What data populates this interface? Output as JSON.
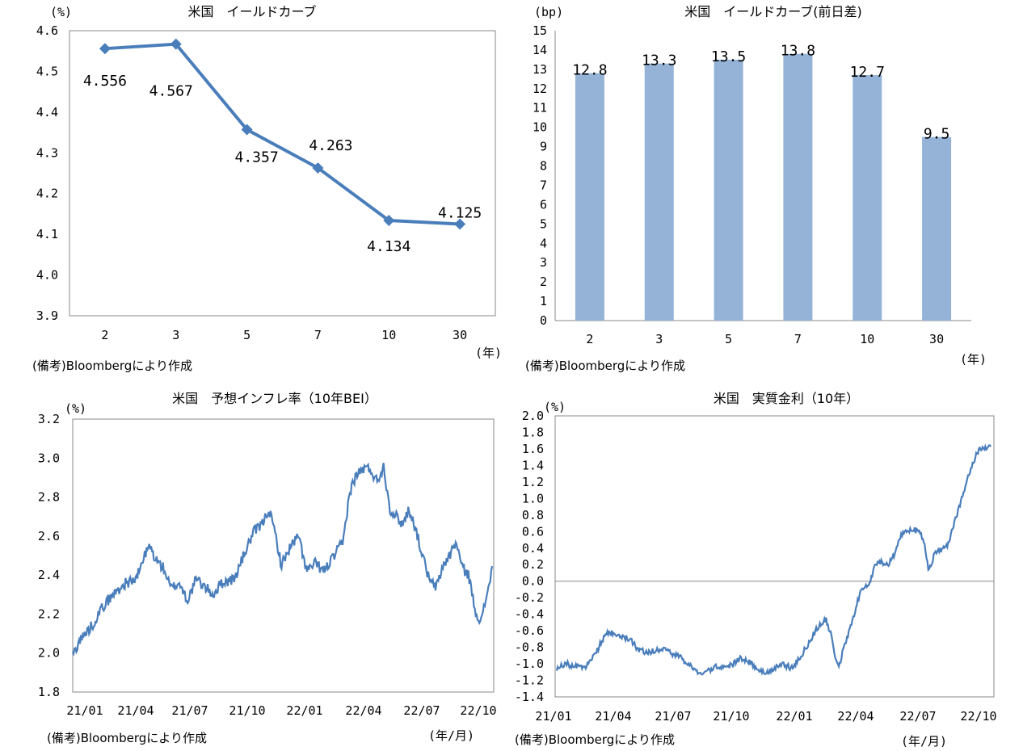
{
  "chart_data": [
    {
      "type": "line",
      "title": "米国　イールドカーブ",
      "y_unit": "(%)",
      "x_unit": "(年)",
      "source": "(備考)Bloombergにより作成",
      "categories": [
        "2",
        "3",
        "5",
        "7",
        "10",
        "30"
      ],
      "values": [
        4.556,
        4.567,
        4.357,
        4.263,
        4.134,
        4.125
      ],
      "data_labels": [
        "4.556",
        "4.567",
        "4.357",
        "4.263",
        "4.134",
        "4.125"
      ],
      "ylim": [
        3.9,
        4.6
      ],
      "yticks": [
        "4.6",
        "4.5",
        "4.4",
        "4.3",
        "4.2",
        "4.1",
        "4.0",
        "3.9"
      ],
      "color": "#4a7ebb",
      "grid": false
    },
    {
      "type": "bar",
      "title": "米国　イールドカーブ(前日差)",
      "y_unit": "(bp)",
      "x_unit": "(年)",
      "source": "(備考)Bloombergにより作成",
      "categories": [
        "2",
        "3",
        "5",
        "7",
        "10",
        "30"
      ],
      "values": [
        12.8,
        13.3,
        13.5,
        13.8,
        12.7,
        9.5
      ],
      "data_labels": [
        "12.8",
        "13.3",
        "13.5",
        "13.8",
        "12.7",
        "9.5"
      ],
      "ylim": [
        0,
        15
      ],
      "yticks": [
        "15",
        "14",
        "13",
        "12",
        "11",
        "10",
        "9",
        "8",
        "7",
        "6",
        "5",
        "4",
        "3",
        "2",
        "1",
        "0"
      ],
      "color": "#95b3d7",
      "grid": false
    },
    {
      "type": "line",
      "title": "米国　予想インフレ率（10年BEI）",
      "y_unit": "(%)",
      "x_unit": "(年/月)",
      "source": "(備考)Bloombergにより作成",
      "xticks": [
        "21/01",
        "21/04",
        "21/07",
        "21/10",
        "22/01",
        "22/04",
        "22/07",
        "22/10"
      ],
      "ylim": [
        1.8,
        3.2
      ],
      "yticks": [
        "3.2",
        "3.0",
        "2.8",
        "2.6",
        "2.4",
        "2.2",
        "2.0",
        "1.8"
      ],
      "anchors": [
        [
          0,
          1.99
        ],
        [
          0.3,
          2.06
        ],
        [
          0.6,
          2.1
        ],
        [
          0.9,
          2.14
        ],
        [
          1.2,
          2.2
        ],
        [
          1.5,
          2.25
        ],
        [
          2.0,
          2.31
        ],
        [
          2.5,
          2.36
        ],
        [
          3.0,
          2.38
        ],
        [
          3.3,
          2.48
        ],
        [
          3.6,
          2.55
        ],
        [
          3.9,
          2.48
        ],
        [
          4.3,
          2.43
        ],
        [
          4.6,
          2.33
        ],
        [
          5.0,
          2.36
        ],
        [
          5.4,
          2.27
        ],
        [
          5.8,
          2.38
        ],
        [
          6.2,
          2.34
        ],
        [
          6.6,
          2.3
        ],
        [
          7.0,
          2.36
        ],
        [
          7.6,
          2.38
        ],
        [
          8.1,
          2.52
        ],
        [
          8.5,
          2.62
        ],
        [
          8.9,
          2.66
        ],
        [
          9.2,
          2.74
        ],
        [
          9.5,
          2.62
        ],
        [
          9.8,
          2.45
        ],
        [
          10.2,
          2.54
        ],
        [
          10.6,
          2.6
        ],
        [
          11.0,
          2.42
        ],
        [
          11.4,
          2.46
        ],
        [
          11.8,
          2.42
        ],
        [
          12.3,
          2.5
        ],
        [
          12.7,
          2.57
        ],
        [
          13.0,
          2.82
        ],
        [
          13.3,
          2.91
        ],
        [
          13.7,
          2.95
        ],
        [
          14.0,
          2.94
        ],
        [
          14.3,
          2.88
        ],
        [
          14.6,
          2.96
        ],
        [
          14.9,
          2.74
        ],
        [
          15.2,
          2.7
        ],
        [
          15.5,
          2.66
        ],
        [
          15.8,
          2.74
        ],
        [
          16.1,
          2.64
        ],
        [
          16.5,
          2.47
        ],
        [
          16.8,
          2.36
        ],
        [
          17.1,
          2.34
        ],
        [
          17.4,
          2.45
        ],
        [
          17.7,
          2.5
        ],
        [
          18.0,
          2.57
        ],
        [
          18.3,
          2.44
        ],
        [
          18.6,
          2.4
        ],
        [
          18.9,
          2.22
        ],
        [
          19.2,
          2.16
        ],
        [
          19.5,
          2.33
        ],
        [
          19.7,
          2.43
        ]
      ],
      "color": "#4a7ebb",
      "grid": false
    },
    {
      "type": "line",
      "title": "米国　実質金利（10年）",
      "y_unit": "(%)",
      "x_unit": "(年/月)",
      "source": "(備考)Bloombergにより作成",
      "xticks": [
        "21/01",
        "21/04",
        "21/07",
        "21/10",
        "22/01",
        "22/04",
        "22/07",
        "22/10"
      ],
      "ylim": [
        -1.4,
        2.0
      ],
      "yticks": [
        "2.0",
        "1.8",
        "1.6",
        "1.4",
        "1.2",
        "1.0",
        "0.8",
        "0.6",
        "0.4",
        "0.2",
        "0.0",
        "-0.2",
        "-0.4",
        "-0.6",
        "-0.8",
        "-1.0",
        "-1.2",
        "-1.4"
      ],
      "zero_line": true,
      "anchors": [
        [
          0,
          -1.06
        ],
        [
          0.4,
          -0.99
        ],
        [
          0.8,
          -1.03
        ],
        [
          1.2,
          -1.04
        ],
        [
          1.5,
          -1.01
        ],
        [
          1.8,
          -0.88
        ],
        [
          2.1,
          -0.73
        ],
        [
          2.4,
          -0.62
        ],
        [
          2.8,
          -0.64
        ],
        [
          3.2,
          -0.68
        ],
        [
          3.5,
          -0.73
        ],
        [
          3.8,
          -0.82
        ],
        [
          4.2,
          -0.86
        ],
        [
          4.6,
          -0.84
        ],
        [
          5.0,
          -0.82
        ],
        [
          5.4,
          -0.88
        ],
        [
          5.8,
          -0.92
        ],
        [
          6.2,
          -1.01
        ],
        [
          6.6,
          -1.12
        ],
        [
          7.0,
          -1.1
        ],
        [
          7.4,
          -1.04
        ],
        [
          7.8,
          -1.03
        ],
        [
          8.2,
          -1.02
        ],
        [
          8.6,
          -0.93
        ],
        [
          9.0,
          -0.98
        ],
        [
          9.4,
          -1.05
        ],
        [
          9.8,
          -1.12
        ],
        [
          10.2,
          -1.04
        ],
        [
          10.6,
          -1.01
        ],
        [
          11.0,
          -1.05
        ],
        [
          11.4,
          -0.92
        ],
        [
          11.8,
          -0.74
        ],
        [
          12.2,
          -0.56
        ],
        [
          12.6,
          -0.47
        ],
        [
          12.8,
          -0.62
        ],
        [
          13.0,
          -0.88
        ],
        [
          13.2,
          -1.03
        ],
        [
          13.5,
          -0.75
        ],
        [
          13.8,
          -0.52
        ],
        [
          14.0,
          -0.3
        ],
        [
          14.3,
          -0.08
        ],
        [
          14.6,
          -0.05
        ],
        [
          14.9,
          0.19
        ],
        [
          15.2,
          0.24
        ],
        [
          15.5,
          0.19
        ],
        [
          15.8,
          0.33
        ],
        [
          16.1,
          0.56
        ],
        [
          16.4,
          0.62
        ],
        [
          16.7,
          0.63
        ],
        [
          17.0,
          0.58
        ],
        [
          17.2,
          0.45
        ],
        [
          17.4,
          0.14
        ],
        [
          17.7,
          0.34
        ],
        [
          18.0,
          0.38
        ],
        [
          18.3,
          0.45
        ],
        [
          18.6,
          0.72
        ],
        [
          18.9,
          0.95
        ],
        [
          19.2,
          1.22
        ],
        [
          19.5,
          1.45
        ],
        [
          19.8,
          1.62
        ],
        [
          20.1,
          1.6
        ],
        [
          20.3,
          1.66
        ]
      ],
      "color": "#4a7ebb",
      "grid": false
    }
  ]
}
